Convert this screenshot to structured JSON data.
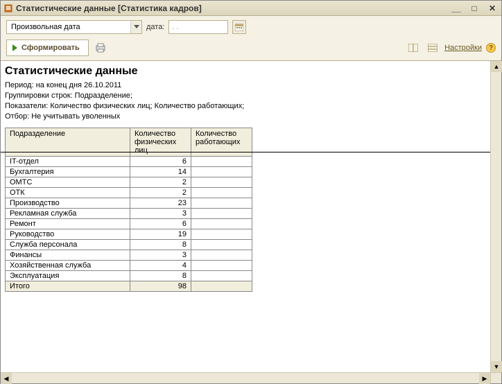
{
  "window": {
    "title": "Статистические данные [Статистика кадров]"
  },
  "toolbar": {
    "date_mode": "Произвольная дата",
    "date_label": "дата:",
    "date_value": ". .",
    "form_button": "Сформировать",
    "settings_label": "Настройки"
  },
  "report": {
    "title": "Статистические данные",
    "meta": [
      "Период: на конец дня 26.10.2011",
      "Группировки строк: Подразделение;",
      "Показатели: Количество физических лиц; Количество работающих;",
      "Отбор: Не учитывать уволенных"
    ],
    "columns": [
      "Подразделение",
      "Количество физических лиц",
      "Количество работающих"
    ],
    "rows": [
      {
        "dept": "IT-отдел",
        "phys": 6,
        "work": ""
      },
      {
        "dept": "Бухгалтерия",
        "phys": 14,
        "work": ""
      },
      {
        "dept": "ОМТС",
        "phys": 2,
        "work": ""
      },
      {
        "dept": "ОТК",
        "phys": 2,
        "work": ""
      },
      {
        "dept": "Производство",
        "phys": 23,
        "work": ""
      },
      {
        "dept": "Рекламная служба",
        "phys": 3,
        "work": ""
      },
      {
        "dept": "Ремонт",
        "phys": 6,
        "work": ""
      },
      {
        "dept": "Руководство",
        "phys": 19,
        "work": ""
      },
      {
        "dept": "Служба персонала",
        "phys": 8,
        "work": ""
      },
      {
        "dept": "Финансы",
        "phys": 3,
        "work": ""
      },
      {
        "dept": "Хозяйственная служба",
        "phys": 4,
        "work": ""
      },
      {
        "dept": "Эксплуатация",
        "phys": 8,
        "work": ""
      }
    ],
    "total": {
      "label": "Итого",
      "phys": 98,
      "work": ""
    }
  },
  "style": {
    "header_bg": "#f2eedd",
    "border_color": "#888888",
    "window_bg": "#f5f1e4"
  }
}
